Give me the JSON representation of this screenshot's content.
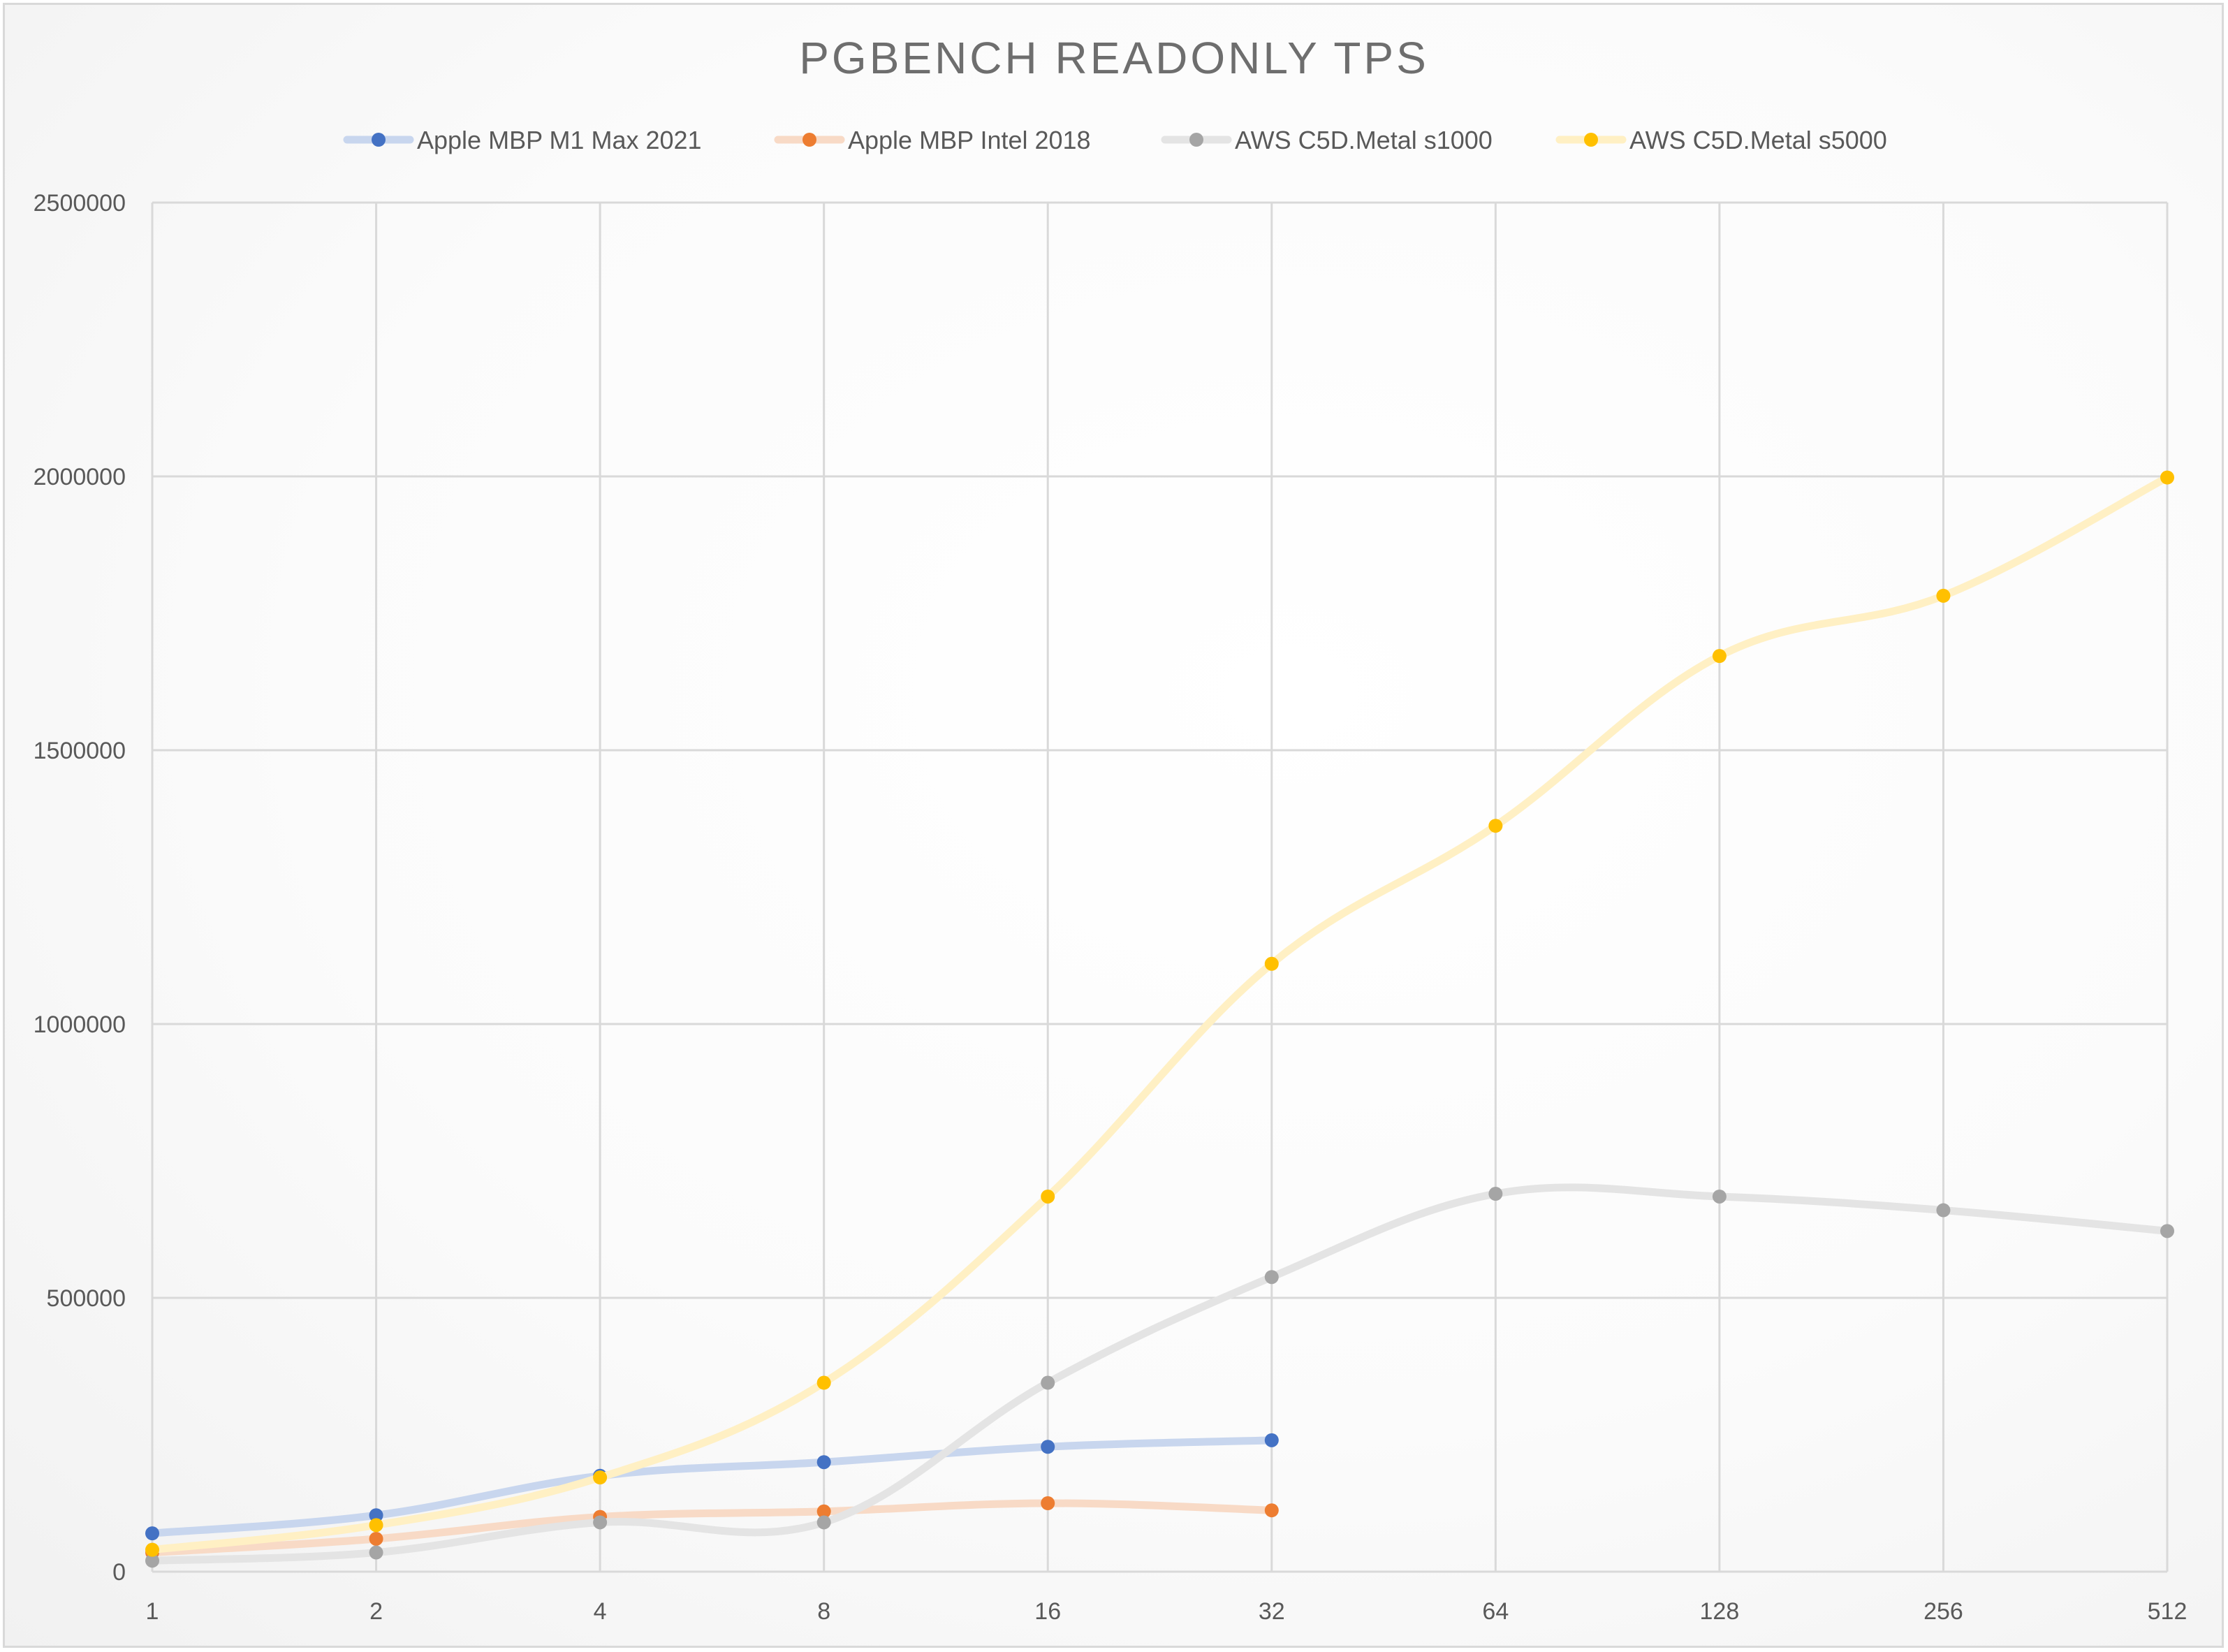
{
  "chart_data": {
    "type": "line",
    "title": "PGBENCH READONLY TPS",
    "categories": [
      "1",
      "2",
      "4",
      "8",
      "16",
      "32",
      "64",
      "128",
      "256",
      "512"
    ],
    "ylim": [
      0,
      2500000
    ],
    "yticks": [
      "0",
      "500000",
      "1000000",
      "1500000",
      "2000000",
      "2500000"
    ],
    "grid": true,
    "smooth": true,
    "legend_position": "top",
    "series": [
      {
        "name": "Apple MBP M1 Max 2021",
        "line_color": "#c8d6ee",
        "marker_color": "#4472c4",
        "values": [
          70000,
          103000,
          175000,
          200000,
          228000,
          240000,
          null,
          null,
          null,
          null
        ]
      },
      {
        "name": "Apple MBP Intel 2018",
        "line_color": "#f8dac6",
        "marker_color": "#ed7d31",
        "values": [
          35000,
          60000,
          100000,
          110000,
          125000,
          112000,
          null,
          null,
          null,
          null
        ]
      },
      {
        "name": "AWS C5D.Metal s1000",
        "line_color": "#e4e4e4",
        "marker_color": "#a5a5a5",
        "values": [
          20000,
          35000,
          90000,
          90000,
          345000,
          538000,
          690000,
          685000,
          660000,
          622000
        ]
      },
      {
        "name": "AWS C5D.Metal s5000",
        "line_color": "#fff0c4",
        "marker_color": "#ffc000",
        "values": [
          40000,
          85000,
          172000,
          345000,
          685000,
          1110000,
          1362000,
          1672000,
          1782000,
          1998000
        ]
      }
    ]
  }
}
